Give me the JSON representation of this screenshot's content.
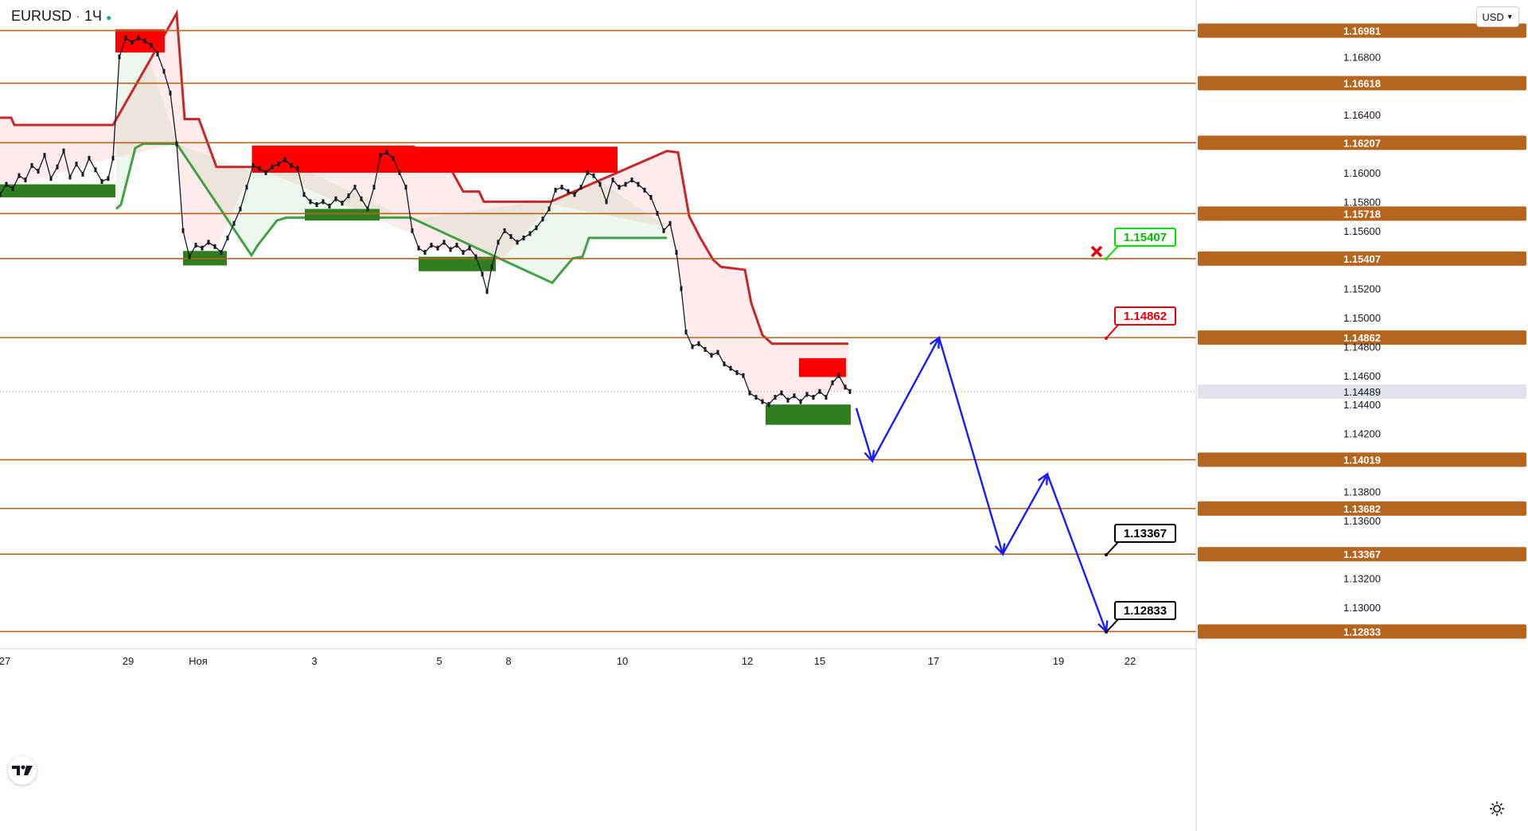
{
  "toolbar": {
    "symbol": "EURUSD",
    "interval": "1Ч",
    "currency": "USD"
  },
  "chart_data": {
    "type": "line",
    "title": "EURUSD · 1Ч",
    "xlabel": "",
    "ylabel": "",
    "ylim": [
      1.127,
      1.1715
    ],
    "y_ticks": [
      "1.16800",
      "1.16400",
      "1.16000",
      "1.15800",
      "1.15600",
      "1.15200",
      "1.15000",
      "1.14800",
      "1.14600",
      "1.14400",
      "1.14200",
      "1.13800",
      "1.13600",
      "1.13200",
      "1.13000"
    ],
    "x_ticks": [
      "27",
      "29",
      "Ноя",
      "3",
      "5",
      "8",
      "10",
      "12",
      "15",
      "17",
      "19",
      "22"
    ],
    "current_price": "1.14489",
    "levels": [
      "1.16981",
      "1.16618",
      "1.16207",
      "1.15718",
      "1.15407",
      "1.14862",
      "1.14019",
      "1.13682",
      "1.13367",
      "1.12833"
    ],
    "annotations": [
      {
        "text": "1.15407",
        "color": "#00e000"
      },
      {
        "text": "1.14862",
        "color": "#e8000d"
      },
      {
        "text": "1.13367",
        "color": "#000000"
      },
      {
        "text": "1.12833",
        "color": "#000000"
      }
    ],
    "price_line": [
      {
        "t": 0,
        "v": 1.1585
      },
      {
        "t": 8,
        "v": 1.1592
      },
      {
        "t": 16,
        "v": 1.1589
      },
      {
        "t": 24,
        "v": 1.1598
      },
      {
        "t": 32,
        "v": 1.1595
      },
      {
        "t": 40,
        "v": 1.1605
      },
      {
        "t": 48,
        "v": 1.1601
      },
      {
        "t": 56,
        "v": 1.1612
      },
      {
        "t": 64,
        "v": 1.1596
      },
      {
        "t": 72,
        "v": 1.1604
      },
      {
        "t": 80,
        "v": 1.1615
      },
      {
        "t": 88,
        "v": 1.1597
      },
      {
        "t": 96,
        "v": 1.1606
      },
      {
        "t": 104,
        "v": 1.1599
      },
      {
        "t": 112,
        "v": 1.161
      },
      {
        "t": 120,
        "v": 1.1602
      },
      {
        "t": 128,
        "v": 1.1594
      },
      {
        "t": 136,
        "v": 1.1596
      },
      {
        "t": 142,
        "v": 1.161
      },
      {
        "t": 150,
        "v": 1.168
      },
      {
        "t": 158,
        "v": 1.1693
      },
      {
        "t": 166,
        "v": 1.169
      },
      {
        "t": 174,
        "v": 1.1693
      },
      {
        "t": 182,
        "v": 1.1691
      },
      {
        "t": 190,
        "v": 1.1688
      },
      {
        "t": 198,
        "v": 1.1682
      },
      {
        "t": 206,
        "v": 1.167
      },
      {
        "t": 214,
        "v": 1.1655
      },
      {
        "t": 222,
        "v": 1.162
      },
      {
        "t": 230,
        "v": 1.156
      },
      {
        "t": 238,
        "v": 1.1542
      },
      {
        "t": 246,
        "v": 1.155
      },
      {
        "t": 254,
        "v": 1.1548
      },
      {
        "t": 262,
        "v": 1.1552
      },
      {
        "t": 270,
        "v": 1.1549
      },
      {
        "t": 278,
        "v": 1.1545
      },
      {
        "t": 286,
        "v": 1.1555
      },
      {
        "t": 294,
        "v": 1.1565
      },
      {
        "t": 302,
        "v": 1.1575
      },
      {
        "t": 310,
        "v": 1.159
      },
      {
        "t": 318,
        "v": 1.1605
      },
      {
        "t": 326,
        "v": 1.1603
      },
      {
        "t": 334,
        "v": 1.16
      },
      {
        "t": 342,
        "v": 1.1604
      },
      {
        "t": 350,
        "v": 1.1606
      },
      {
        "t": 358,
        "v": 1.1609
      },
      {
        "t": 366,
        "v": 1.1605
      },
      {
        "t": 374,
        "v": 1.1603
      },
      {
        "t": 382,
        "v": 1.1585
      },
      {
        "t": 390,
        "v": 1.158
      },
      {
        "t": 398,
        "v": 1.1578
      },
      {
        "t": 406,
        "v": 1.158
      },
      {
        "t": 414,
        "v": 1.1577
      },
      {
        "t": 422,
        "v": 1.1582
      },
      {
        "t": 430,
        "v": 1.1579
      },
      {
        "t": 438,
        "v": 1.1584
      },
      {
        "t": 446,
        "v": 1.159
      },
      {
        "t": 454,
        "v": 1.1582
      },
      {
        "t": 462,
        "v": 1.1575
      },
      {
        "t": 470,
        "v": 1.159
      },
      {
        "t": 478,
        "v": 1.1612
      },
      {
        "t": 486,
        "v": 1.1614
      },
      {
        "t": 494,
        "v": 1.161
      },
      {
        "t": 502,
        "v": 1.16
      },
      {
        "t": 510,
        "v": 1.159
      },
      {
        "t": 518,
        "v": 1.156
      },
      {
        "t": 526,
        "v": 1.1548
      },
      {
        "t": 534,
        "v": 1.1545
      },
      {
        "t": 542,
        "v": 1.155
      },
      {
        "t": 550,
        "v": 1.1548
      },
      {
        "t": 558,
        "v": 1.1552
      },
      {
        "t": 566,
        "v": 1.1547
      },
      {
        "t": 574,
        "v": 1.155
      },
      {
        "t": 582,
        "v": 1.1545
      },
      {
        "t": 590,
        "v": 1.1548
      },
      {
        "t": 598,
        "v": 1.1542
      },
      {
        "t": 606,
        "v": 1.153
      },
      {
        "t": 612,
        "v": 1.1518
      },
      {
        "t": 618,
        "v": 1.1535
      },
      {
        "t": 626,
        "v": 1.1552
      },
      {
        "t": 634,
        "v": 1.156
      },
      {
        "t": 642,
        "v": 1.1556
      },
      {
        "t": 650,
        "v": 1.1552
      },
      {
        "t": 658,
        "v": 1.1555
      },
      {
        "t": 666,
        "v": 1.1558
      },
      {
        "t": 674,
        "v": 1.1562
      },
      {
        "t": 682,
        "v": 1.1568
      },
      {
        "t": 690,
        "v": 1.1575
      },
      {
        "t": 698,
        "v": 1.1588
      },
      {
        "t": 706,
        "v": 1.159
      },
      {
        "t": 714,
        "v": 1.1587
      },
      {
        "t": 722,
        "v": 1.1585
      },
      {
        "t": 730,
        "v": 1.159
      },
      {
        "t": 738,
        "v": 1.16
      },
      {
        "t": 746,
        "v": 1.1598
      },
      {
        "t": 754,
        "v": 1.1592
      },
      {
        "t": 762,
        "v": 1.158
      },
      {
        "t": 770,
        "v": 1.1595
      },
      {
        "t": 778,
        "v": 1.159
      },
      {
        "t": 786,
        "v": 1.1592
      },
      {
        "t": 794,
        "v": 1.1595
      },
      {
        "t": 802,
        "v": 1.1592
      },
      {
        "t": 810,
        "v": 1.1588
      },
      {
        "t": 818,
        "v": 1.1583
      },
      {
        "t": 826,
        "v": 1.1572
      },
      {
        "t": 834,
        "v": 1.156
      },
      {
        "t": 842,
        "v": 1.1565
      },
      {
        "t": 850,
        "v": 1.1545
      },
      {
        "t": 856,
        "v": 1.152
      },
      {
        "t": 862,
        "v": 1.149
      },
      {
        "t": 870,
        "v": 1.148
      },
      {
        "t": 878,
        "v": 1.1482
      },
      {
        "t": 886,
        "v": 1.1478
      },
      {
        "t": 894,
        "v": 1.1474
      },
      {
        "t": 902,
        "v": 1.1476
      },
      {
        "t": 910,
        "v": 1.1468
      },
      {
        "t": 918,
        "v": 1.1465
      },
      {
        "t": 926,
        "v": 1.1462
      },
      {
        "t": 934,
        "v": 1.146
      },
      {
        "t": 942,
        "v": 1.1448
      },
      {
        "t": 950,
        "v": 1.1445
      },
      {
        "t": 958,
        "v": 1.1442
      },
      {
        "t": 966,
        "v": 1.144
      },
      {
        "t": 974,
        "v": 1.1445
      },
      {
        "t": 982,
        "v": 1.1448
      },
      {
        "t": 990,
        "v": 1.1443
      },
      {
        "t": 998,
        "v": 1.1446
      },
      {
        "t": 1006,
        "v": 1.1442
      },
      {
        "t": 1014,
        "v": 1.1447
      },
      {
        "t": 1022,
        "v": 1.1445
      },
      {
        "t": 1030,
        "v": 1.1449
      },
      {
        "t": 1038,
        "v": 1.1445
      },
      {
        "t": 1046,
        "v": 1.1455
      },
      {
        "t": 1054,
        "v": 1.146
      },
      {
        "t": 1062,
        "v": 1.1452
      },
      {
        "t": 1068,
        "v": 1.1449
      }
    ],
    "upper_band": [
      {
        "t": 0,
        "v": 1.1638
      },
      {
        "t": 14,
        "v": 1.1638
      },
      {
        "t": 18,
        "v": 1.1633
      },
      {
        "t": 142,
        "v": 1.1633
      },
      {
        "t": 222,
        "v": 1.171
      },
      {
        "t": 232,
        "v": 1.1637
      },
      {
        "t": 250,
        "v": 1.1637
      },
      {
        "t": 272,
        "v": 1.1604
      },
      {
        "t": 318,
        "v": 1.1604
      },
      {
        "t": 318,
        "v": 1.1618
      },
      {
        "t": 520,
        "v": 1.1618
      },
      {
        "t": 530,
        "v": 1.1603
      },
      {
        "t": 566,
        "v": 1.1603
      },
      {
        "t": 582,
        "v": 1.1587
      },
      {
        "t": 602,
        "v": 1.1587
      },
      {
        "t": 608,
        "v": 1.158
      },
      {
        "t": 692,
        "v": 1.158
      },
      {
        "t": 838,
        "v": 1.1615
      },
      {
        "t": 852,
        "v": 1.1614
      },
      {
        "t": 866,
        "v": 1.157
      },
      {
        "t": 880,
        "v": 1.1555
      },
      {
        "t": 896,
        "v": 1.154
      },
      {
        "t": 906,
        "v": 1.1535
      },
      {
        "t": 936,
        "v": 1.1533
      },
      {
        "t": 944,
        "v": 1.151
      },
      {
        "t": 958,
        "v": 1.1488
      },
      {
        "t": 970,
        "v": 1.1482
      },
      {
        "t": 1066,
        "v": 1.1482
      }
    ],
    "lower_band": [
      {
        "t": 146,
        "v": 1.1575
      },
      {
        "t": 152,
        "v": 1.1578
      },
      {
        "t": 170,
        "v": 1.1617
      },
      {
        "t": 180,
        "v": 1.162
      },
      {
        "t": 222,
        "v": 1.162
      },
      {
        "t": 316,
        "v": 1.1543
      },
      {
        "t": 324,
        "v": 1.155
      },
      {
        "t": 348,
        "v": 1.1567
      },
      {
        "t": 360,
        "v": 1.1569
      },
      {
        "t": 516,
        "v": 1.1569
      },
      {
        "t": 694,
        "v": 1.1524
      },
      {
        "t": 706,
        "v": 1.1532
      },
      {
        "t": 720,
        "v": 1.1541
      },
      {
        "t": 732,
        "v": 1.1542
      },
      {
        "t": 740,
        "v": 1.1555
      },
      {
        "t": 838,
        "v": 1.1555
      }
    ],
    "supply_zones": [
      {
        "t1": 145,
        "t2": 207,
        "v1": 1.1699,
        "v2": 1.1683
      },
      {
        "t1": 317,
        "t2": 776,
        "v1": 1.1618,
        "v2": 1.16
      },
      {
        "t1": 1004,
        "t2": 1063,
        "v1": 1.1472,
        "v2": 1.1459
      }
    ],
    "demand_zones": [
      {
        "t1": 0,
        "t2": 145,
        "v1": 1.1592,
        "v2": 1.1583
      },
      {
        "t1": 230,
        "t2": 285,
        "v1": 1.1546,
        "v2": 1.1536
      },
      {
        "t1": 383,
        "t2": 477,
        "v1": 1.1575,
        "v2": 1.1567
      },
      {
        "t1": 526,
        "t2": 623,
        "v1": 1.1542,
        "v2": 1.1532
      },
      {
        "t1": 962,
        "t2": 1069,
        "v1": 1.144,
        "v2": 1.1426
      }
    ],
    "forecast_path": [
      {
        "t": 1076,
        "v": 1.14375
      },
      {
        "t": 1096,
        "v": 1.1401
      },
      {
        "t": 1180,
        "v": 1.14862
      },
      {
        "t": 1260,
        "v": 1.13367
      },
      {
        "t": 1316,
        "v": 1.1392
      },
      {
        "t": 1390,
        "v": 1.12833
      }
    ]
  }
}
